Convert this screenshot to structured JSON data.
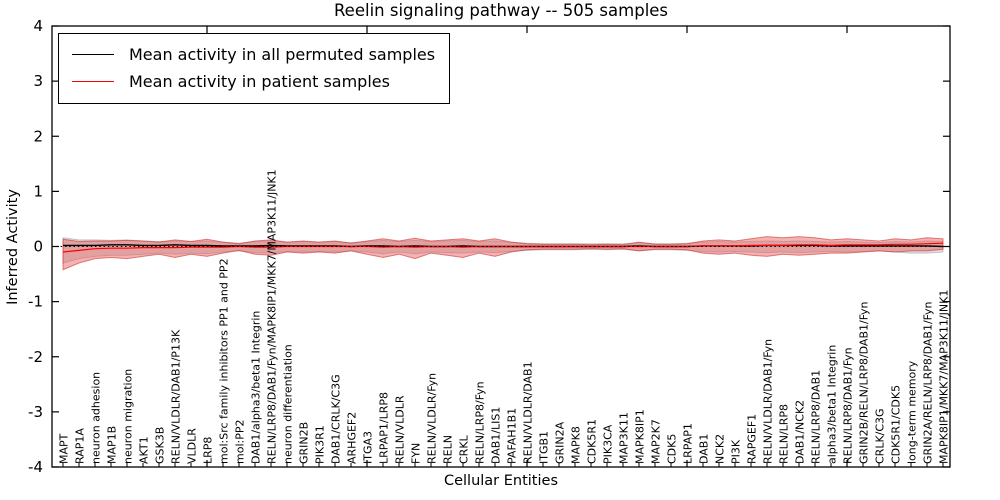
{
  "title": "Reelin signaling pathway -- 505 samples",
  "axes": {
    "xlabel": "Cellular Entities",
    "ylabel": "Inferred Activity"
  },
  "legend": {
    "items": [
      {
        "label": "Mean activity in all permuted samples",
        "color": "#000000"
      },
      {
        "label": "Mean activity in patient samples",
        "color": "#ff0000"
      }
    ]
  },
  "colors": {
    "patient_line": "#ff0000",
    "permuted_line": "#000000",
    "patient_band_fill": "#e85555",
    "patient_band_edge": "#cc2222",
    "permuted_band_fill": "#aaaaaa",
    "permuted_band_edge": "#999999",
    "zero_line": "#000000"
  },
  "chart_data": {
    "type": "line",
    "title": "Reelin signaling pathway -- 505 samples",
    "xlabel": "Cellular Entities",
    "ylabel": "Inferred Activity",
    "ylim": [
      -4,
      4
    ],
    "y_ticks": [
      4,
      3,
      2,
      1,
      0,
      -1,
      -2,
      -3,
      -4
    ],
    "x_major_tick_indices": [
      9,
      19,
      29,
      39,
      49
    ],
    "grid": false,
    "legend_position": "upper left",
    "entities": [
      "MAPT",
      "RAP1A",
      "neuron adhesion",
      "MAP1B",
      "neuron migration",
      "AKT1",
      "GSK3B",
      "RELN/VLDLR/DAB1/P13K",
      "VLDLR",
      "LRP8",
      "mol:Src family inhibitors PP1 and PP2",
      "mol:PP2",
      "DAB1/alpha3/beta1 Integrin",
      "RELN/LRP8/DAB1/Fyn/MAPK8IP1/MKK7/MAP3K11/JNK1",
      "neuron differentiation",
      "GRIN2B",
      "PIK3R1",
      "DAB1/CRLK/C3G",
      "ARHGEF2",
      "ITGA3",
      "LRPAP1/LRP8",
      "RELN/VLDLR",
      "FYN",
      "RELN/VLDLR/Fyn",
      "RELN",
      "CRKL",
      "RELN/LRP8/Fyn",
      "DAB1/LIS1",
      "PAFAH1B1",
      "RELN/VLDLR/DAB1",
      "ITGB1",
      "GRIN2A",
      "MAPK8",
      "CDK5R1",
      "PIK3CA",
      "MAP3K11",
      "MAPK8IP1",
      "MAP2K7",
      "CDK5",
      "LRPAP1",
      "DAB1",
      "NCK2",
      "PI3K",
      "RAPGEF1",
      "RELN/VLDLR/DAB1/Fyn",
      "RELN/LRP8",
      "DAB1/NCK2",
      "RELN/LRP8/DAB1",
      "alpha3/beta1 Integrin",
      "RELN/LRP8/DAB1/Fyn",
      "GRIN2B/RELN/LRP8/DAB1/Fyn",
      "CRLK/C3G",
      "CDK5R1/CDK5",
      "long-term memory",
      "GRIN2A/RELN/LRP8/DAB1/Fyn",
      "MAPK8IP1/MKK7/MAP3K11/JNK1"
    ],
    "series": [
      {
        "name": "Mean activity in all permuted samples",
        "values": [
          0.02,
          0.02,
          0.02,
          0.03,
          0.03,
          0.02,
          0.02,
          0.03,
          0.02,
          0.02,
          0.01,
          0.01,
          0.01,
          0.02,
          0.01,
          0.01,
          0.01,
          0.01,
          0.0,
          0.01,
          0.01,
          0.0,
          0.01,
          0.0,
          0.0,
          0.01,
          0.0,
          0.0,
          0.0,
          0.0,
          0.0,
          0.0,
          0.0,
          0.0,
          0.0,
          0.0,
          0.01,
          0.0,
          0.0,
          0.0,
          0.01,
          0.01,
          0.01,
          0.01,
          0.02,
          0.02,
          0.02,
          0.02,
          0.01,
          0.01,
          0.01,
          0.01,
          0.01,
          0.01,
          0.01,
          0.0
        ]
      },
      {
        "name": "Mean activity in patient samples",
        "values": [
          -0.1,
          -0.07,
          -0.04,
          -0.03,
          -0.03,
          -0.02,
          -0.02,
          -0.02,
          -0.01,
          -0.01,
          -0.01,
          0.0,
          -0.01,
          -0.01,
          0.0,
          0.0,
          0.0,
          0.0,
          0.0,
          0.0,
          -0.01,
          0.0,
          -0.01,
          0.0,
          0.0,
          -0.01,
          0.0,
          0.0,
          0.0,
          0.0,
          0.0,
          0.0,
          0.0,
          0.0,
          0.0,
          0.0,
          0.0,
          0.0,
          0.0,
          0.0,
          0.01,
          0.01,
          0.01,
          0.02,
          0.02,
          0.02,
          0.03,
          0.03,
          0.02,
          0.03,
          0.03,
          0.03,
          0.04,
          0.04,
          0.05,
          0.06
        ]
      }
    ],
    "bands": [
      {
        "name": "permuted-samples-band",
        "upper": [
          0.16,
          0.12,
          0.12,
          0.11,
          0.12,
          0.1,
          0.09,
          0.1,
          0.09,
          0.1,
          0.08,
          0.06,
          0.09,
          0.1,
          0.08,
          0.09,
          0.08,
          0.09,
          0.07,
          0.09,
          0.11,
          0.09,
          0.11,
          0.09,
          0.1,
          0.11,
          0.09,
          0.1,
          0.08,
          0.06,
          0.05,
          0.05,
          0.05,
          0.05,
          0.05,
          0.05,
          0.07,
          0.05,
          0.05,
          0.06,
          0.08,
          0.09,
          0.08,
          0.09,
          0.1,
          0.09,
          0.1,
          0.09,
          0.08,
          0.09,
          0.08,
          0.07,
          0.09,
          0.08,
          0.1,
          0.09
        ],
        "lower": [
          -0.3,
          -0.22,
          -0.18,
          -0.16,
          -0.16,
          -0.14,
          -0.12,
          -0.14,
          -0.12,
          -0.13,
          -0.1,
          -0.08,
          -0.11,
          -0.12,
          -0.09,
          -0.1,
          -0.09,
          -0.1,
          -0.08,
          -0.1,
          -0.13,
          -0.1,
          -0.13,
          -0.1,
          -0.11,
          -0.12,
          -0.1,
          -0.11,
          -0.09,
          -0.07,
          -0.06,
          -0.06,
          -0.06,
          -0.05,
          -0.06,
          -0.05,
          -0.08,
          -0.06,
          -0.06,
          -0.07,
          -0.09,
          -0.1,
          -0.09,
          -0.1,
          -0.11,
          -0.1,
          -0.11,
          -0.1,
          -0.09,
          -0.1,
          -0.09,
          -0.08,
          -0.1,
          -0.12,
          -0.12,
          -0.1
        ]
      },
      {
        "name": "patient-samples-band",
        "upper": [
          0.13,
          0.09,
          0.1,
          0.1,
          0.11,
          0.1,
          0.08,
          0.12,
          0.09,
          0.13,
          0.08,
          0.05,
          0.1,
          0.12,
          0.08,
          0.1,
          0.08,
          0.1,
          0.06,
          0.1,
          0.14,
          0.1,
          0.15,
          0.1,
          0.12,
          0.14,
          0.1,
          0.14,
          0.08,
          0.05,
          0.04,
          0.04,
          0.04,
          0.03,
          0.04,
          0.03,
          0.08,
          0.04,
          0.04,
          0.05,
          0.1,
          0.12,
          0.1,
          0.14,
          0.18,
          0.16,
          0.18,
          0.16,
          0.12,
          0.14,
          0.12,
          0.1,
          0.14,
          0.12,
          0.16,
          0.14
        ],
        "lower": [
          -0.42,
          -0.3,
          -0.22,
          -0.2,
          -0.22,
          -0.18,
          -0.14,
          -0.2,
          -0.14,
          -0.18,
          -0.12,
          -0.07,
          -0.14,
          -0.16,
          -0.1,
          -0.12,
          -0.1,
          -0.12,
          -0.08,
          -0.14,
          -0.2,
          -0.14,
          -0.22,
          -0.12,
          -0.16,
          -0.2,
          -0.12,
          -0.18,
          -0.1,
          -0.06,
          -0.05,
          -0.05,
          -0.05,
          -0.04,
          -0.05,
          -0.04,
          -0.08,
          -0.05,
          -0.05,
          -0.06,
          -0.12,
          -0.14,
          -0.12,
          -0.16,
          -0.18,
          -0.14,
          -0.16,
          -0.14,
          -0.12,
          -0.12,
          -0.1,
          -0.08,
          -0.1,
          -0.08,
          -0.08,
          -0.05
        ]
      }
    ]
  }
}
